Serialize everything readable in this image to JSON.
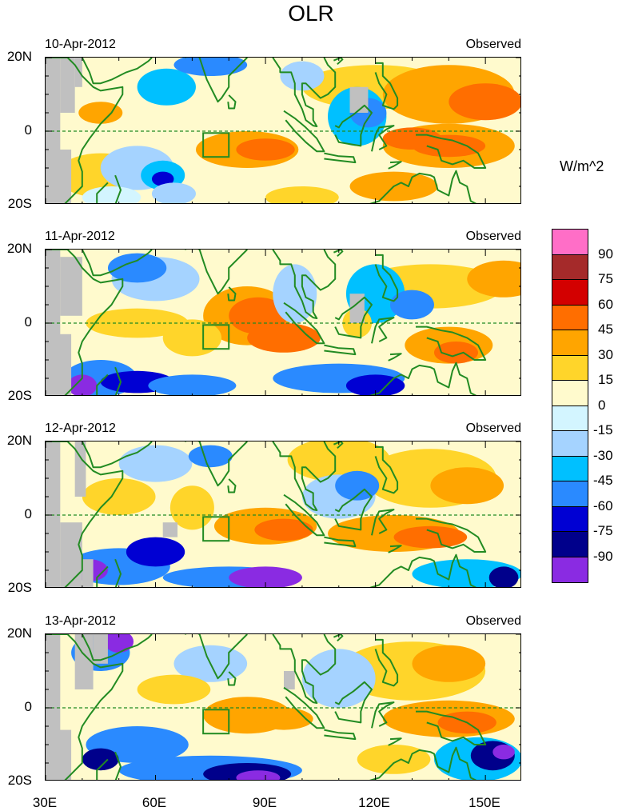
{
  "title": "OLR",
  "panels": [
    {
      "date": "10-Apr-2012",
      "source": "Observed"
    },
    {
      "date": "11-Apr-2012",
      "source": "Observed"
    },
    {
      "date": "12-Apr-2012",
      "source": "Observed"
    },
    {
      "date": "13-Apr-2012",
      "source": "Observed"
    }
  ],
  "lat_labels": [
    "20N",
    "0",
    "20S"
  ],
  "lon_labels": [
    "30E",
    "60E",
    "90E",
    "120E",
    "150E"
  ],
  "colorbar": {
    "unit": "W/m^2",
    "labels": [
      "90",
      "75",
      "60",
      "45",
      "30",
      "15",
      "0",
      "-15",
      "-30",
      "-45",
      "-60",
      "-75",
      "-90"
    ],
    "colors": [
      "#ff6ec7",
      "#a52a2a",
      "#d30000",
      "#ff6e00",
      "#ffa500",
      "#ffd52a",
      "#fffacd",
      "#d3f5ff",
      "#a5d3ff",
      "#00c0ff",
      "#2a8aff",
      "#0000d3",
      "#00008b",
      "#8a2be2"
    ]
  },
  "map": {
    "lon_range": [
      30,
      160
    ],
    "lat_range": [
      -20,
      20
    ],
    "coast_color": "#228b22",
    "missing_color": "#c0c0c0"
  }
}
